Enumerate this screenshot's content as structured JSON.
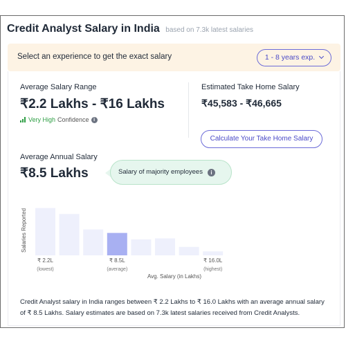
{
  "header": {
    "title": "Credit Analyst Salary in India",
    "subtitle": "based on 7.3k latest salaries"
  },
  "experience": {
    "prompt": "Select an experience to get the exact salary",
    "selected": "1 - 8 years exp."
  },
  "salary_range": {
    "label": "Average Salary Range",
    "value": "₹2.2 Lakhs - ₹16 Lakhs",
    "confidence_level": "Very High",
    "confidence_suffix": "Confidence",
    "confidence_color": "#2e9e44"
  },
  "take_home": {
    "label": "Estimated Take Home Salary",
    "value": "₹45,583 - ₹46,665",
    "button_label": "Calculate Your Take Home Salary"
  },
  "annual": {
    "label": "Average Annual Salary",
    "value": "₹8.5 Lakhs",
    "tooltip": "Salary of majority employees"
  },
  "chart_data": {
    "type": "bar",
    "ylabel": "Salaries Reported",
    "xlabel": "Avg. Salary (in Lakhs)",
    "relative_values": [
      0.95,
      0.83,
      0.52,
      0.45,
      0.32,
      0.34,
      0.17,
      0.08
    ],
    "highlight_index": 3,
    "bar_color": "#eef0fc",
    "highlight_color": "#a8b0f2",
    "ticks": [
      {
        "bar": 0,
        "label": "₹ 2.2L",
        "sub": "(lowest)"
      },
      {
        "bar": 3,
        "label": "₹ 8.5L",
        "sub": "(average)"
      },
      {
        "bar": 7,
        "label": "₹ 16.0L",
        "sub": "(highest)"
      }
    ]
  },
  "description": "Credit Analyst salary in India ranges between ₹ 2.2 Lakhs to ₹ 16.0 Lakhs with an average annual salary of ₹ 8.5 Lakhs. Salary estimates are based on 7.3k latest salaries received from Credit Analysts.",
  "colors": {
    "accent": "#4a4ac7",
    "banner_bg": "#fdf3e4",
    "tooltip_bg": "#e6f6ee"
  },
  "icons": {
    "confidence": "signal-bars-icon",
    "info": "info-icon",
    "dropdown": "chevron-down-icon"
  }
}
